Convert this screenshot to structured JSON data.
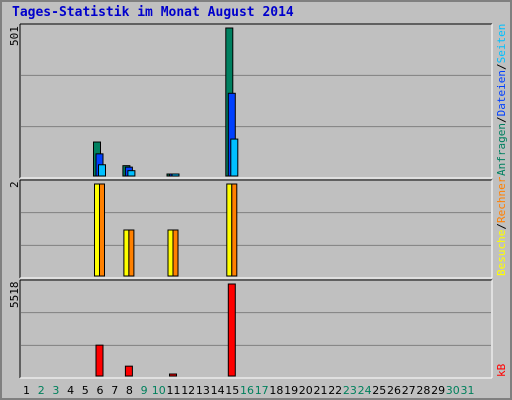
{
  "title": "Tages-Statistik im Monat August 2014",
  "max_labels": {
    "top": "501",
    "middle": "2",
    "bottom": "5518"
  },
  "legend": {
    "top": [
      {
        "text": "Anfragen",
        "color": "#008060"
      },
      {
        "text": "/",
        "color": "#000000"
      },
      {
        "text": "Dateien",
        "color": "#0040ff"
      },
      {
        "text": "/",
        "color": "#000000"
      },
      {
        "text": "Seiten",
        "color": "#00c0ff"
      }
    ],
    "middle": [
      {
        "text": "Besuche",
        "color": "#ffff00"
      },
      {
        "text": "/",
        "color": "#000000"
      },
      {
        "text": "Rechner",
        "color": "#ff8000"
      }
    ],
    "bottom": [
      {
        "text": "kB",
        "color": "#ff0000"
      }
    ]
  },
  "chart_data": {
    "type": "bar",
    "title": "Tages-Statistik im Monat August 2014",
    "categories": [
      "1",
      "2",
      "3",
      "4",
      "5",
      "6",
      "7",
      "8",
      "9",
      "10",
      "11",
      "12",
      "13",
      "14",
      "15",
      "16",
      "17",
      "18",
      "19",
      "20",
      "21",
      "22",
      "23",
      "24",
      "25",
      "26",
      "27",
      "28",
      "29",
      "30",
      "31"
    ],
    "weekend_days": [
      "2",
      "3",
      "9",
      "10",
      "16",
      "17",
      "23",
      "24",
      "30",
      "31"
    ],
    "colors": {
      "weekday": "#000000",
      "weekend": "#00805c"
    },
    "panels": [
      {
        "name": "top",
        "ymax": 501,
        "series": [
          {
            "name": "Anfragen",
            "color": "#008060",
            "values": [
              0,
              0,
              0,
              0,
              0,
              115,
              0,
              35,
              0,
              0,
              2,
              0,
              0,
              0,
              501,
              0,
              0,
              0,
              0,
              0,
              0,
              0,
              0,
              0,
              0,
              0,
              0,
              0,
              0,
              0,
              0
            ]
          },
          {
            "name": "Dateien",
            "color": "#0040ff",
            "values": [
              0,
              0,
              0,
              0,
              0,
              75,
              0,
              30,
              0,
              0,
              1,
              0,
              0,
              0,
              280,
              0,
              0,
              0,
              0,
              0,
              0,
              0,
              0,
              0,
              0,
              0,
              0,
              0,
              0,
              0,
              0
            ]
          },
          {
            "name": "Seiten",
            "color": "#00c0ff",
            "values": [
              0,
              0,
              0,
              0,
              0,
              38,
              0,
              18,
              0,
              0,
              1,
              0,
              0,
              0,
              125,
              0,
              0,
              0,
              0,
              0,
              0,
              0,
              0,
              0,
              0,
              0,
              0,
              0,
              0,
              0,
              0
            ]
          }
        ]
      },
      {
        "name": "middle",
        "ymax": 2,
        "series": [
          {
            "name": "Besuche",
            "color": "#ffff00",
            "values": [
              0,
              0,
              0,
              0,
              0,
              2,
              0,
              1,
              0,
              0,
              1,
              0,
              0,
              0,
              2,
              0,
              0,
              0,
              0,
              0,
              0,
              0,
              0,
              0,
              0,
              0,
              0,
              0,
              0,
              0,
              0
            ]
          },
          {
            "name": "Rechner",
            "color": "#ff8000",
            "values": [
              0,
              0,
              0,
              0,
              0,
              2,
              0,
              1,
              0,
              0,
              1,
              0,
              0,
              0,
              2,
              0,
              0,
              0,
              0,
              0,
              0,
              0,
              0,
              0,
              0,
              0,
              0,
              0,
              0,
              0,
              0
            ]
          }
        ]
      },
      {
        "name": "bottom",
        "ymax": 5518,
        "series": [
          {
            "name": "kB",
            "color": "#ff0000",
            "values": [
              0,
              0,
              0,
              0,
              0,
              1850,
              0,
              590,
              0,
              0,
              60,
              0,
              0,
              0,
              5518,
              0,
              0,
              0,
              0,
              0,
              0,
              0,
              0,
              0,
              0,
              0,
              0,
              0,
              0,
              0,
              0
            ]
          }
        ]
      }
    ]
  }
}
